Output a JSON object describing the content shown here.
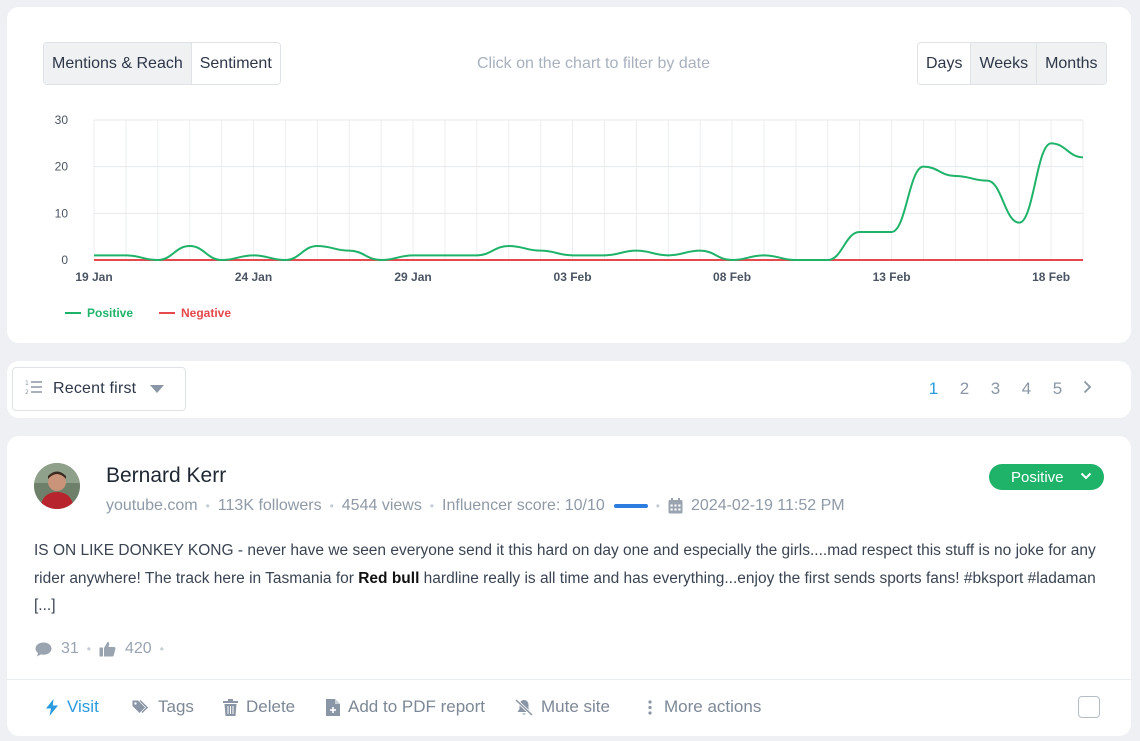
{
  "chart_panel": {
    "metric_tabs": [
      "Mentions & Reach",
      "Sentiment"
    ],
    "active_metric": "Sentiment",
    "hint": "Click on the chart to filter by date",
    "period_tabs": [
      "Days",
      "Weeks",
      "Months"
    ],
    "active_period": "Days"
  },
  "chart_data": {
    "type": "line",
    "x": [
      "19 Jan",
      "20 Jan",
      "21 Jan",
      "22 Jan",
      "23 Jan",
      "24 Jan",
      "25 Jan",
      "26 Jan",
      "27 Jan",
      "28 Jan",
      "29 Jan",
      "30 Jan",
      "31 Jan",
      "01 Feb",
      "02 Feb",
      "03 Feb",
      "04 Feb",
      "05 Feb",
      "06 Feb",
      "07 Feb",
      "08 Feb",
      "09 Feb",
      "10 Feb",
      "11 Feb",
      "12 Feb",
      "13 Feb",
      "14 Feb",
      "15 Feb",
      "16 Feb",
      "17 Feb",
      "18 Feb",
      "19 Feb"
    ],
    "x_tick_labels": [
      "19 Jan",
      "24 Jan",
      "29 Jan",
      "03 Feb",
      "08 Feb",
      "13 Feb",
      "18 Feb"
    ],
    "series": [
      {
        "name": "Positive",
        "color": "#1fb36a",
        "values": [
          1,
          1,
          0,
          3,
          0,
          1,
          0,
          3,
          2,
          0,
          1,
          1,
          1,
          3,
          2,
          1,
          1,
          2,
          1,
          2,
          0,
          1,
          0,
          0,
          6,
          6,
          20,
          18,
          17,
          8,
          25,
          22
        ]
      },
      {
        "name": "Negative",
        "color": "#e5484d",
        "values": [
          0,
          0,
          0,
          0,
          0,
          0,
          0,
          0,
          0,
          0,
          0,
          0,
          0,
          0,
          0,
          0,
          0,
          0,
          0,
          0,
          0,
          0,
          0,
          0,
          0,
          0,
          0,
          0,
          0,
          0,
          0,
          0
        ]
      }
    ],
    "ylim": [
      0,
      30
    ],
    "y_ticks": [
      0,
      10,
      20,
      30
    ],
    "grid": true,
    "legend_position": "bottom-left"
  },
  "sort": {
    "label": "Recent first"
  },
  "pagination": {
    "pages": [
      "1",
      "2",
      "3",
      "4",
      "5"
    ],
    "current": "1",
    "next_icon": "chevron-right-icon"
  },
  "mention": {
    "author": "Bernard Kerr",
    "source": "youtube.com",
    "followers": "113K followers",
    "views": "4544 views",
    "influencer_score": "Influencer score: 10/10",
    "date": "2024-02-19 11:52 PM",
    "sentiment": "Positive",
    "text_before": "IS ON LIKE DONKEY KONG - never have we seen everyone send it this hard on day one and especially the girls....mad respect this stuff is no joke for any rider anywhere! The track here in Tasmania for ",
    "text_bold": "Red bull",
    "text_after": " hardline really is all time and has everything...enjoy the first sends sports fans! #bksport #ladaman [...]",
    "comments": "31",
    "likes": "420",
    "colors": {
      "accent": "#2b9be0",
      "positive": "#1fb36a",
      "negative": "#e5484d"
    }
  },
  "actions": {
    "visit": "Visit",
    "tags": "Tags",
    "delete": "Delete",
    "pdf": "Add to PDF report",
    "mute": "Mute site",
    "more": "More actions"
  }
}
